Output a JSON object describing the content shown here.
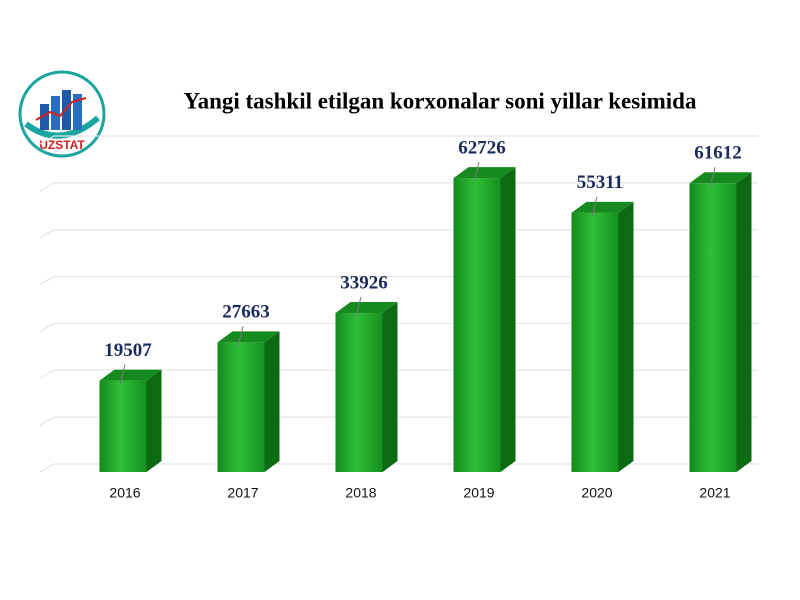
{
  "logo": {
    "text": "UZSTAT"
  },
  "chart_data": {
    "type": "bar3d",
    "title": "Yangi tashkil etilgan korxonalar soni yillar kesimida",
    "categories": [
      "2016",
      "2017",
      "2018",
      "2019",
      "2020",
      "2021"
    ],
    "values": [
      19507,
      27663,
      33926,
      62726,
      55311,
      61612
    ],
    "color": "#1f9e2a",
    "ylim": [
      0,
      70000
    ],
    "yticks": [
      0,
      10000,
      20000,
      30000,
      40000,
      50000,
      60000,
      70000
    ],
    "grid": true
  }
}
